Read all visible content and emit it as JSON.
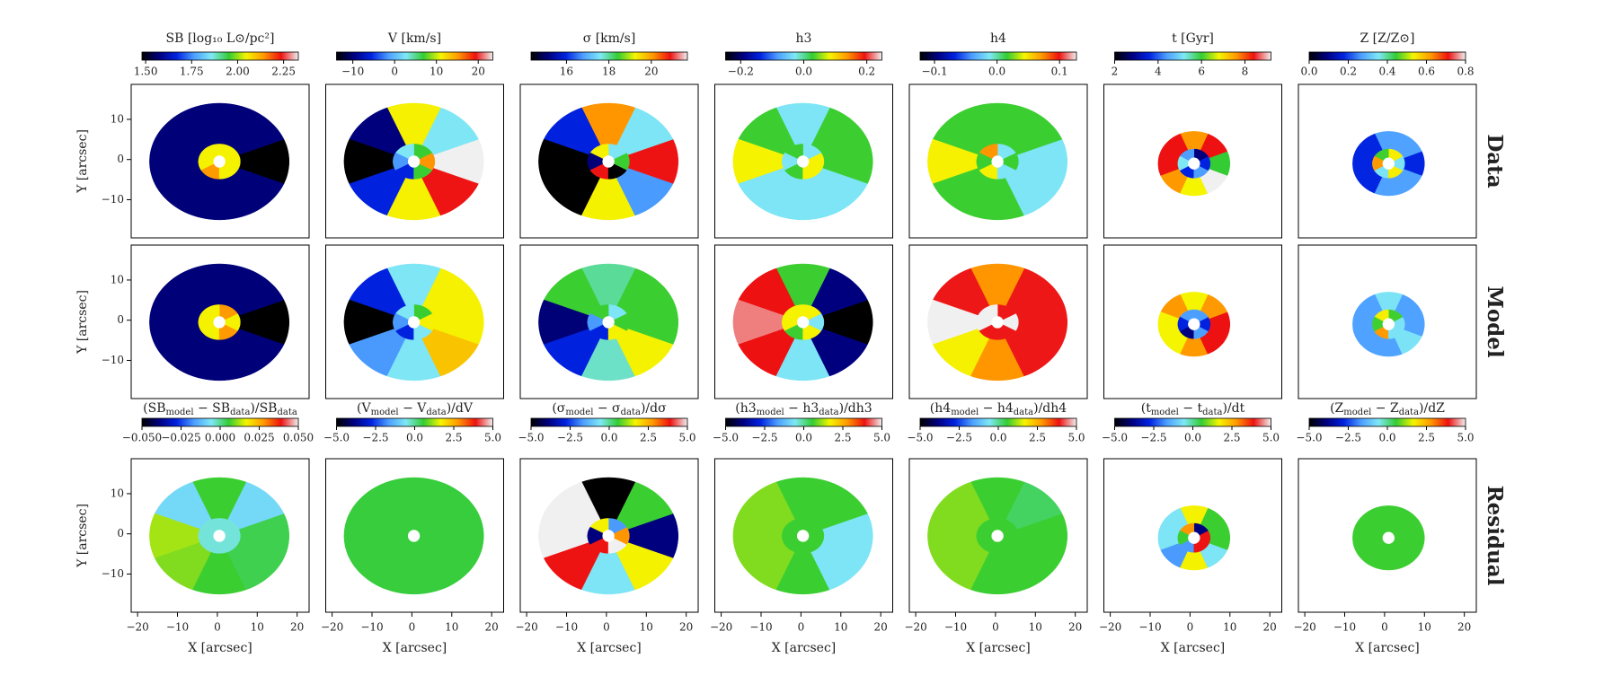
{
  "chart_data": {
    "type": "map",
    "colormap": [
      "#000000",
      "#00007f",
      "#0022e0",
      "#4d9fff",
      "#7fe8f5",
      "#33cc33",
      "#f5f500",
      "#ff9900",
      "#ee1111",
      "#f0f0f0"
    ],
    "xlim": [
      -21.6,
      23
    ],
    "ylim": [
      -19.5,
      18.7
    ],
    "xticks": [
      {
        "value": -20,
        "label": "−20"
      },
      {
        "value": -10,
        "label": "−10"
      },
      0,
      10,
      20
    ],
    "yticks": [
      {
        "value": -10,
        "label": "−10"
      },
      0,
      10
    ],
    "xlabel": "X [arcsec]",
    "ylabel": "Y [arcsec]",
    "row_labels": [
      "Data",
      "Model",
      "Residual"
    ],
    "columns": [
      {
        "label": "SB [log₁₀ L⊙/pc²]",
        "clim": [
          1.48,
          2.33
        ],
        "cticks": [
          {
            "value": 1.5,
            "label": "1.50"
          },
          1.75,
          {
            "value": 2.0,
            "label": "2.00"
          },
          2.25
        ],
        "residual_label": [
          "(SB",
          "model",
          " − SB",
          "data",
          ")/SB",
          "data"
        ],
        "residual_clim": [
          -0.05,
          0.05
        ],
        "residual_cticks": [
          {
            "value": -0.05,
            "label": "−0.050"
          },
          {
            "value": -0.025,
            "label": "−0.025"
          },
          {
            "value": 0,
            "label": "0.000"
          },
          {
            "value": 0.025,
            "label": "0.025"
          },
          {
            "value": 0.05,
            "label": "0.050"
          }
        ],
        "maps": [
          {
            "outer": [
              1.48,
              1.57,
              1.57,
              1.57,
              1.57,
              1.57,
              1.57,
              1.57
            ],
            "inner": [
              2.05,
              2.05,
              2.05,
              2.05,
              2.14,
              2.05
            ]
          },
          {
            "outer": [
              1.48,
              1.57,
              1.57,
              1.57,
              1.57,
              1.57,
              1.57,
              1.57
            ],
            "inner": [
              2.05,
              2.14,
              2.05,
              2.05,
              2.05,
              2.14
            ]
          },
          {
            "outer": [
              0.004,
              -0.008,
              0.006,
              -0.008,
              0.012,
              0.01,
              0.006,
              0.004
            ],
            "inner": [
              -0.004,
              -0.004,
              -0.004,
              -0.004,
              -0.004,
              -0.004
            ]
          }
        ]
      },
      {
        "label": "V [km/s]",
        "clim": [
          -13.9,
          23.5
        ],
        "cticks": [
          {
            "value": -10,
            "label": "−10"
          },
          0,
          10,
          20
        ],
        "residual_label": [
          "(V",
          "model",
          " − V",
          "data",
          ")/dV"
        ],
        "residual_clim": [
          -5,
          5
        ],
        "residual_cticks": [
          {
            "value": -5,
            "label": "−5.0"
          },
          {
            "value": -2.5,
            "label": "−2.5"
          },
          {
            "value": 0,
            "label": "0.0"
          },
          2.5,
          {
            "value": 5,
            "label": "5.0"
          }
        ],
        "maps": [
          {
            "outer": [
              23.5,
              2.6,
              11.2,
              -9.8,
              -13.9,
              -5.7,
              11.2,
              19.4
            ],
            "inner": [
              15.3,
              7.0,
              2.6,
              -1.6,
              -5.7,
              7.0
            ]
          },
          {
            "outer": [
              11.2,
              11.2,
              2.6,
              -5.7,
              -13.9,
              -1.6,
              2.6,
              13.3
            ],
            "inner": [
              11.2,
              7.0,
              2.6,
              -1.6,
              -5.7,
              2.6
            ]
          },
          {
            "outer": [
              0.5,
              0.5,
              0.5,
              0.5,
              0.5,
              0.5,
              0.5,
              0.5
            ],
            "inner": [
              0.5,
              0.5,
              0.5,
              0.5,
              0.5,
              0.5
            ]
          }
        ]
      },
      {
        "label": "σ [km/s]",
        "clim": [
          14.33,
          21.7
        ],
        "cticks": [
          16,
          18,
          20
        ],
        "residual_label": [
          "(σ",
          "model",
          " − σ",
          "data",
          ")/dσ"
        ],
        "residual_clim": [
          -5,
          5
        ],
        "residual_cticks": [
          {
            "value": -5,
            "label": "−5.0"
          },
          {
            "value": -2.5,
            "label": "−2.5"
          },
          {
            "value": 0,
            "label": "0.0"
          },
          2.5,
          {
            "value": 5,
            "label": "5.0"
          }
        ],
        "maps": [
          {
            "outer": [
              20.89,
              17.57,
              20.08,
              15.95,
              14.33,
              14.33,
              19.27,
              16.76
            ],
            "inner": [
              18.46,
              17.57,
              19.27,
              15.1,
              20.89,
              14.33
            ]
          },
          {
            "outer": [
              18.46,
              18.46,
              18.0,
              18.46,
              15.1,
              15.95,
              17.8,
              19.27
            ],
            "inner": [
              18.46,
              17.57,
              18.46,
              16.76,
              15.95,
              19.27
            ]
          },
          {
            "outer": [
              -3.9,
              0.6,
              -5,
              5,
              5,
              3.9,
              -0.6,
              1.7
            ],
            "inner": [
              2.8,
              -1.7,
              1.7,
              -3.9,
              3.9,
              5
            ]
          }
        ]
      },
      {
        "label": "h3",
        "clim": [
          -0.248,
          0.248
        ],
        "cticks": [
          {
            "value": -0.2,
            "label": "−0.2"
          },
          {
            "value": 0,
            "label": "0.0"
          },
          0.2
        ],
        "residual_label": [
          "(h3",
          "model",
          " − h3",
          "data",
          ")/dh3"
        ],
        "residual_clim": [
          -5,
          5
        ],
        "residual_cticks": [
          {
            "value": -5,
            "label": "−5.0"
          },
          {
            "value": -2.5,
            "label": "−2.5"
          },
          {
            "value": 0,
            "label": "0.0"
          },
          2.5,
          {
            "value": 5,
            "label": "5.0"
          }
        ],
        "maps": [
          {
            "outer": [
              0.03,
              0.03,
              -0.03,
              0.03,
              0.084,
              -0.03,
              -0.03,
              -0.03
            ],
            "inner": [
              0.084,
              -0.03,
              0.03,
              -0.03,
              0.03,
              0.084
            ]
          },
          {
            "outer": [
              -0.248,
              -0.193,
              0.03,
              0.193,
              0.22,
              0.193,
              -0.03,
              -0.193
            ],
            "inner": [
              -0.03,
              0.084,
              0.084,
              0.084,
              0.03,
              0.084
            ]
          },
          {
            "outer": [
              -0.6,
              0.6,
              0.6,
              1.0,
              1.0,
              1.0,
              0.6,
              -0.6
            ],
            "inner": [
              0.6,
              0.6,
              0.6,
              0.6,
              0.6,
              0.6
            ]
          }
        ]
      },
      {
        "label": "h4",
        "clim": [
          -0.123,
          0.127
        ],
        "cticks": [
          {
            "value": -0.1,
            "label": "−0.1"
          },
          {
            "value": 0,
            "label": "0.0"
          },
          0.1
        ],
        "residual_label": [
          "(h4",
          "model",
          " − h4",
          "data",
          ")/dh4"
        ],
        "residual_clim": [
          -5,
          5
        ],
        "residual_cticks": [
          {
            "value": -5,
            "label": "−5.0"
          },
          {
            "value": -2.5,
            "label": "−2.5"
          },
          {
            "value": 0,
            "label": "0.0"
          },
          2.5,
          {
            "value": 5,
            "label": "5.0"
          }
        ],
        "maps": [
          {
            "outer": [
              -0.013,
              0.017,
              0.017,
              0.017,
              0.045,
              0.017,
              0.017,
              -0.013
            ],
            "inner": [
              0.017,
              -0.013,
              0.072,
              0.017,
              0.045,
              -0.013
            ]
          },
          {
            "outer": [
              0.1,
              0.1,
              0.072,
              0.1,
              0.127,
              0.045,
              0.072,
              0.1
            ],
            "inner": [
              0.127,
              0.1,
              0.127,
              0.127,
              0.1,
              0.1
            ]
          },
          {
            "outer": [
              0.6,
              0.3,
              0.6,
              1.0,
              1.0,
              1.0,
              0.6,
              0.6
            ],
            "inner": [
              0.6,
              0.6,
              0.6,
              0.6,
              0.6,
              0.6
            ]
          }
        ]
      },
      {
        "label": "t [Gyr]",
        "clim": [
          2,
          9.2
        ],
        "cticks": [
          2,
          4,
          6,
          8
        ],
        "residual_label": [
          "(t",
          "model",
          " − t",
          "data",
          ")/dt"
        ],
        "residual_clim": [
          -5,
          5
        ],
        "residual_cticks": [
          {
            "value": -5,
            "label": "−5.0"
          },
          {
            "value": -2.5,
            "label": "−2.5"
          },
          {
            "value": 0,
            "label": "0.0"
          },
          2.5,
          {
            "value": 5,
            "label": "5.0"
          }
        ],
        "maps": [
          {
            "outer": [
              6.0,
              8.4,
              7.6,
              8.4,
              8.4,
              7.6,
              6.8,
              9.2
            ],
            "inner": [
              3.6,
              2.8,
              4.4,
              5.2,
              3.6,
              4.4
            ]
          },
          {
            "outer": [
              8.4,
              7.6,
              6.8,
              7.6,
              6.8,
              6.8,
              7.6,
              8.4
            ],
            "inner": [
              3.6,
              4.4,
              4.4,
              3.6,
              2.8,
              4.4
            ]
          },
          {
            "outer": [
              0.6,
              0.6,
              1.7,
              -0.6,
              -0.6,
              -1.7,
              1.7,
              -0.6
            ],
            "inner": [
              3.9,
              -3.9,
              2.8,
              0.6,
              -1.7,
              3.9
            ]
          }
        ]
      },
      {
        "label": "Z [Z/Z⊙]",
        "clim": [
          0,
          0.8
        ],
        "cticks": [
          {
            "value": 0,
            "label": "0.0"
          },
          0.2,
          0.4,
          0.6,
          0.8
        ],
        "residual_label": [
          "(Z",
          "model",
          " − Z",
          "data",
          ")/dZ"
        ],
        "residual_clim": [
          -5,
          5
        ],
        "residual_cticks": [
          {
            "value": -5,
            "label": "−5.0"
          },
          {
            "value": -2.5,
            "label": "−2.5"
          },
          {
            "value": 0,
            "label": "0.0"
          },
          2.5,
          {
            "value": 5,
            "label": "5.0"
          }
        ],
        "maps": [
          {
            "outer": [
              0.18,
              0.27,
              0.27,
              0.18,
              0.18,
              0.18,
              0.27,
              0.27
            ],
            "inner": [
              0.35,
              0.54,
              0.45,
              0.62,
              0.35,
              0.54
            ]
          },
          {
            "outer": [
              0.27,
              0.27,
              0.35,
              0.27,
              0.27,
              0.27,
              0.27,
              0.35
            ],
            "inner": [
              0.35,
              0.45,
              0.54,
              0.45,
              0.62,
              0.35
            ]
          },
          {
            "outer": [
              0.6,
              0.6,
              0.6,
              0.6,
              0.6,
              0.6,
              0.6,
              0.6
            ],
            "inner": [
              0.6,
              0.6,
              0.6,
              0.6,
              0.6,
              0.6
            ]
          }
        ]
      }
    ]
  }
}
